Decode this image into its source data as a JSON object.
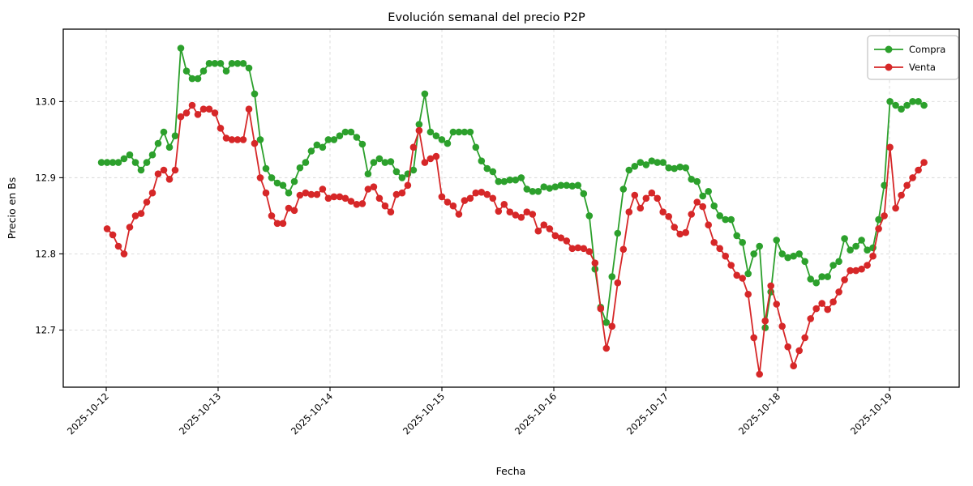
{
  "chart_data": {
    "type": "line",
    "title": "Evolución semanal del precio P2P",
    "xlabel": "Fecha",
    "ylabel": "Precio en Bs",
    "grid": true,
    "marker": "o",
    "legend_position": "upper right",
    "x_unit": "days since 2025-10-12",
    "x_tick_days": [
      0,
      1,
      2,
      3,
      4,
      5,
      6,
      7
    ],
    "x_tick_labels": [
      "2025-10-12",
      "2025-10-13",
      "2025-10-14",
      "2025-10-15",
      "2025-10-16",
      "2025-10-17",
      "2025-10-18",
      "2025-10-19"
    ],
    "y_ticks": [
      12.7,
      12.8,
      12.9,
      13.0
    ],
    "y_tick_labels": [
      "12.7",
      "12.8",
      "12.9",
      "13.0"
    ],
    "xlim_days": [
      -0.384,
      7.623
    ],
    "ylim": [
      12.625,
      13.095
    ],
    "sampling": {
      "x_start": -0.043,
      "x_step": 0.0507
    },
    "series": [
      {
        "name": "Compra",
        "color": "#2ca02c",
        "values": [
          12.92,
          12.92,
          12.92,
          12.92,
          12.925,
          12.93,
          12.92,
          12.91,
          12.92,
          12.93,
          12.945,
          12.96,
          12.94,
          12.955,
          13.07,
          13.04,
          13.03,
          13.03,
          13.04,
          13.05,
          13.05,
          13.05,
          13.04,
          13.05,
          13.05,
          13.05,
          13.044,
          13.01,
          12.95,
          12.912,
          12.9,
          12.893,
          12.89,
          12.88,
          12.895,
          12.913,
          12.92,
          12.935,
          12.943,
          12.94,
          12.95,
          12.95,
          12.955,
          12.96,
          12.96,
          12.953,
          12.944,
          12.905,
          12.92,
          12.925,
          12.92,
          12.921,
          12.908,
          12.9,
          12.905,
          12.91,
          12.97,
          13.01,
          12.96,
          12.955,
          12.95,
          12.945,
          12.96,
          12.96,
          12.96,
          12.96,
          12.94,
          12.922,
          12.912,
          12.908,
          12.895,
          12.895,
          12.897,
          12.897,
          12.9,
          12.885,
          12.882,
          12.882,
          12.888,
          12.886,
          12.888,
          12.89,
          12.89,
          12.889,
          12.89,
          12.879,
          12.85,
          12.78,
          12.73,
          12.71,
          12.77,
          12.827,
          12.885,
          12.91,
          12.915,
          12.92,
          12.917,
          12.922,
          12.92,
          12.92,
          12.913,
          12.912,
          12.914,
          12.913,
          12.898,
          12.895,
          12.876,
          12.882,
          12.863,
          12.85,
          12.845,
          12.845,
          12.824,
          12.815,
          12.774,
          12.8,
          12.81,
          12.703,
          12.75,
          12.818,
          12.8,
          12.795,
          12.797,
          12.8,
          12.79,
          12.767,
          12.762,
          12.77,
          12.77,
          12.785,
          12.79,
          12.82,
          12.805,
          12.81,
          12.818,
          12.805,
          12.808,
          12.845,
          12.89,
          13.0,
          12.995,
          12.99,
          12.995,
          13.0,
          13.0,
          12.995
        ]
      },
      {
        "name": "Venta",
        "color": "#d62728",
        "values": [
          null,
          12.833,
          12.825,
          12.81,
          12.8,
          12.835,
          12.85,
          12.853,
          12.868,
          12.88,
          12.905,
          12.91,
          12.898,
          12.91,
          12.98,
          12.985,
          12.995,
          12.983,
          12.99,
          12.99,
          12.985,
          12.965,
          12.952,
          12.95,
          12.95,
          12.95,
          12.99,
          12.945,
          12.9,
          12.88,
          12.85,
          12.84,
          12.84,
          12.86,
          12.857,
          12.877,
          12.88,
          12.878,
          12.878,
          12.885,
          12.873,
          12.875,
          12.875,
          12.873,
          12.869,
          12.865,
          12.866,
          12.885,
          12.888,
          12.873,
          12.863,
          12.855,
          12.878,
          12.88,
          12.89,
          12.94,
          12.962,
          12.92,
          12.925,
          12.928,
          12.875,
          12.868,
          12.863,
          12.852,
          12.87,
          12.873,
          12.88,
          12.881,
          12.878,
          12.873,
          12.856,
          12.865,
          12.855,
          12.851,
          12.848,
          12.855,
          12.852,
          12.83,
          12.838,
          12.833,
          12.824,
          12.821,
          12.817,
          12.807,
          12.808,
          12.807,
          12.803,
          12.788,
          12.728,
          12.676,
          12.705,
          12.762,
          12.806,
          12.855,
          12.877,
          12.86,
          12.873,
          12.88,
          12.873,
          12.855,
          12.849,
          12.835,
          12.826,
          12.828,
          12.852,
          12.868,
          12.862,
          12.838,
          12.815,
          12.807,
          12.797,
          12.785,
          12.772,
          12.768,
          12.747,
          12.69,
          12.642,
          12.712,
          12.758,
          12.734,
          12.705,
          12.678,
          12.653,
          12.673,
          12.69,
          12.715,
          12.728,
          12.735,
          12.727,
          12.737,
          12.75,
          12.766,
          12.778,
          12.778,
          12.78,
          12.785,
          12.797,
          12.833,
          12.85,
          12.94,
          12.86,
          12.877,
          12.89,
          12.9,
          12.91,
          12.92
        ]
      }
    ]
  }
}
